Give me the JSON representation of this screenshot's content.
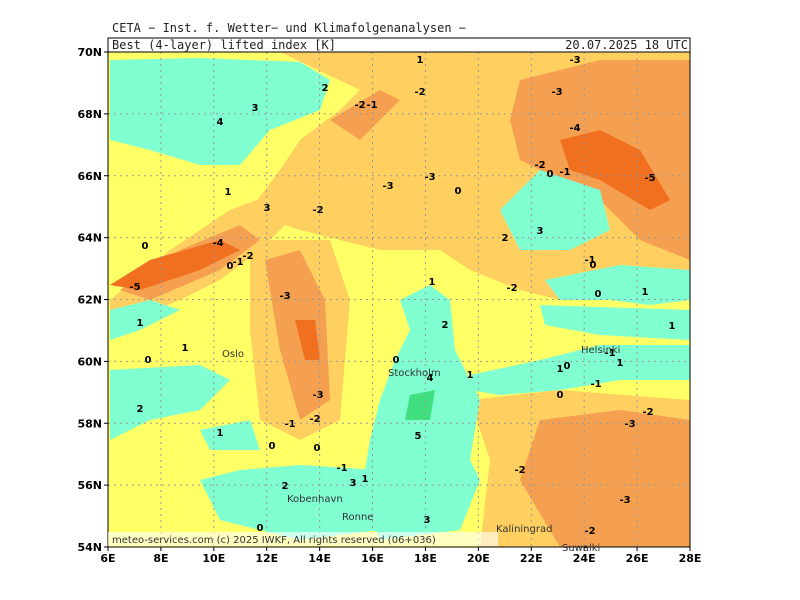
{
  "header": {
    "institute": "CETA − Inst. f. Wetter− und Klimafolgenanalysen −",
    "title": "Best_(4-layer)_lifted_index [K]",
    "datetime": "20.07.2025 18 UTC"
  },
  "axes": {
    "lat_labels": [
      "70N",
      "68N",
      "66N",
      "64N",
      "62N",
      "60N",
      "58N",
      "56N",
      "54N"
    ],
    "lon_labels": [
      "6E",
      "8E",
      "10E",
      "12E",
      "14E",
      "16E",
      "18E",
      "20E",
      "22E",
      "24E",
      "26E",
      "28E"
    ]
  },
  "cities": [
    "Oslo",
    "Stockholm",
    "Helsinki",
    "Kobenhavn",
    "Ronne",
    "Kaliningrad",
    "Suwalki"
  ],
  "contour_labels": [
    1,
    2,
    -2,
    -1,
    -2,
    3,
    4,
    -3,
    -3,
    -4,
    -5,
    1,
    3,
    -2,
    -3,
    -3,
    0,
    -2,
    0,
    -1,
    0,
    -4,
    0,
    -1,
    -2,
    -5,
    2,
    3,
    -1,
    0,
    -2,
    0,
    1,
    1,
    -3,
    1,
    2,
    1,
    0,
    1,
    0,
    4,
    1,
    1,
    0,
    -1,
    1,
    -1,
    0,
    -3,
    2,
    -2,
    -2,
    -3,
    -1,
    1,
    0,
    0,
    5,
    -1,
    3,
    1,
    -2,
    2,
    -3,
    0,
    3,
    -2
  ],
  "footer": "meteo-services.com (c) 2025 IWKF, All rights reserved (06+036)"
}
